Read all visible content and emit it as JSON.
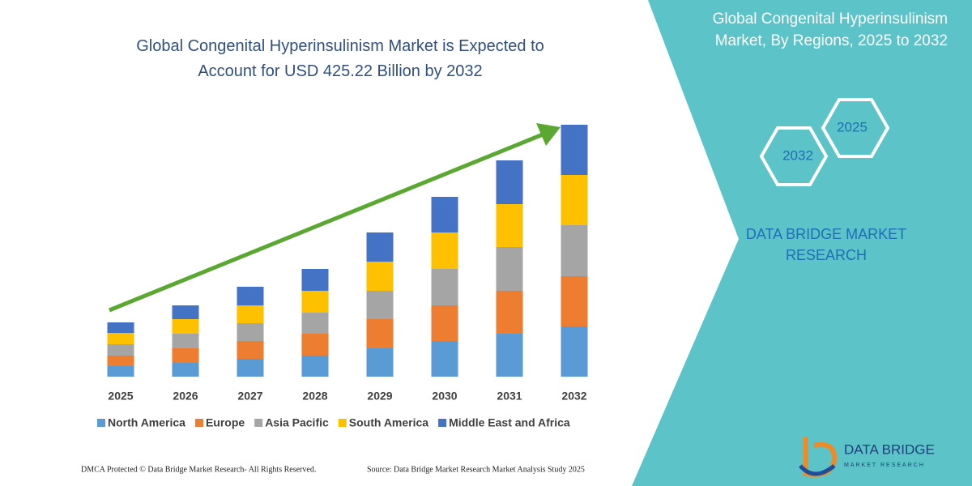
{
  "chart_data": {
    "type": "bar",
    "stacked": true,
    "title": "Global Congenital Hyperinsulinism Market is Expected to Account for USD 425.22 Billion by 2032",
    "categories": [
      "2025",
      "2026",
      "2027",
      "2028",
      "2029",
      "2030",
      "2031",
      "2032"
    ],
    "series": [
      {
        "name": "North America",
        "color": "#5b9bd5",
        "values": [
          13,
          17,
          22,
          26,
          35,
          44,
          53,
          62
        ]
      },
      {
        "name": "Europe",
        "color": "#ed7d31",
        "values": [
          13,
          18,
          22,
          27,
          36,
          44,
          53,
          62
        ]
      },
      {
        "name": "Asia Pacific",
        "color": "#a5a5a5",
        "values": [
          14,
          18,
          22,
          26,
          35,
          45,
          54,
          63
        ]
      },
      {
        "name": "South America",
        "color": "#ffc000",
        "values": [
          14,
          18,
          22,
          27,
          36,
          45,
          53,
          62
        ]
      },
      {
        "name": "Middle East and Africa",
        "color": "#4472c4",
        "values": [
          13,
          17,
          23,
          27,
          36,
          44,
          54,
          62
        ]
      }
    ]
  },
  "panel_title": "Global Congenital Hyperinsulinism Market, By Regions, 2025 to 2032",
  "hexagons": [
    "2025",
    "2032"
  ],
  "brand": "DATA BRIDGE MARKET RESEARCH",
  "logo": {
    "name": "DATA BRIDGE",
    "tagline": "MARKET RESEARCH"
  },
  "footer": {
    "left": "DMCA Protected © Data Bridge Market Research- All Rights Reserved.",
    "right": "Source: Data Bridge Market Research Market Analysis Study 2025"
  }
}
